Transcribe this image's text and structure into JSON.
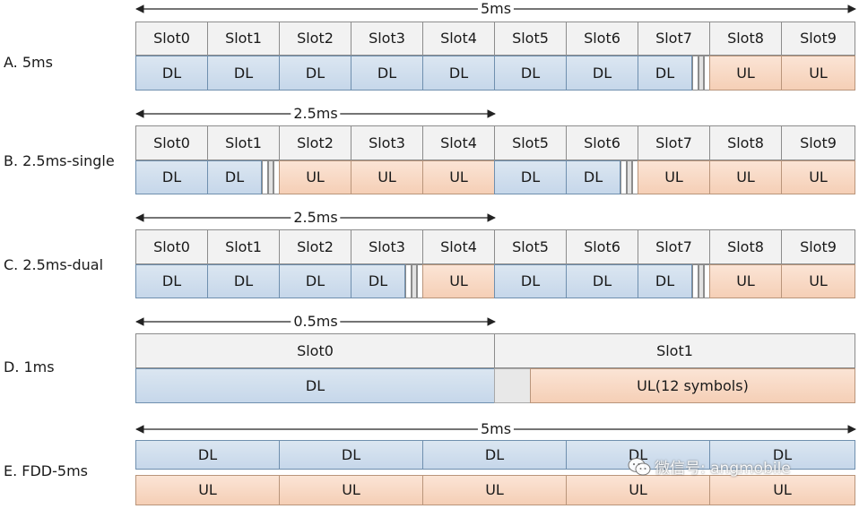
{
  "diagram": {
    "rows": [
      {
        "id": "a",
        "label": "A. 5ms",
        "dimension": "5ms",
        "slot_headers": [
          "Slot0",
          "Slot1",
          "Slot2",
          "Slot3",
          "Slot4",
          "Slot5",
          "Slot6",
          "Slot7",
          "Slot8",
          "Slot9"
        ],
        "cells": [
          "DL",
          "DL",
          "DL",
          "DL",
          "DL",
          "DL",
          "DL",
          "DL",
          "UL",
          "UL"
        ]
      },
      {
        "id": "b",
        "label": "B. 2.5ms-single",
        "dimension": "2.5ms",
        "slot_headers": [
          "Slot0",
          "Slot1",
          "Slot2",
          "Slot3",
          "Slot4",
          "Slot5",
          "Slot6",
          "Slot7",
          "Slot8",
          "Slot9"
        ],
        "cells": [
          "DL",
          "DL",
          "UL",
          "UL",
          "UL",
          "DL",
          "DL",
          "UL",
          "UL",
          "UL"
        ]
      },
      {
        "id": "c",
        "label": "C. 2.5ms-dual",
        "dimension": "2.5ms",
        "slot_headers": [
          "Slot0",
          "Slot1",
          "Slot2",
          "Slot3",
          "Slot4",
          "Slot5",
          "Slot6",
          "Slot7",
          "Slot8",
          "Slot9"
        ],
        "cells": [
          "DL",
          "DL",
          "DL",
          "DL",
          "UL",
          "DL",
          "DL",
          "DL",
          "UL",
          "UL"
        ]
      },
      {
        "id": "d",
        "label": "D. 1ms",
        "dimension": "0.5ms",
        "slot_headers": [
          "Slot0",
          "Slot1"
        ],
        "cells": [
          "DL",
          "UL(12 symbols)"
        ]
      },
      {
        "id": "e",
        "label": "E. FDD-5ms",
        "dimension": "5ms",
        "cells_dl": [
          "DL",
          "DL",
          "DL",
          "DL",
          "DL"
        ],
        "cells_ul": [
          "UL",
          "UL",
          "UL",
          "UL",
          "UL"
        ]
      }
    ]
  },
  "watermark": {
    "text": "微信号: angmobile",
    "icon": "wechat-icon"
  },
  "colors": {
    "dl": "#c6d7ea",
    "ul": "#f5cfb6",
    "slot_header": "#f2f2f2",
    "guard": "#e8e8e8"
  }
}
